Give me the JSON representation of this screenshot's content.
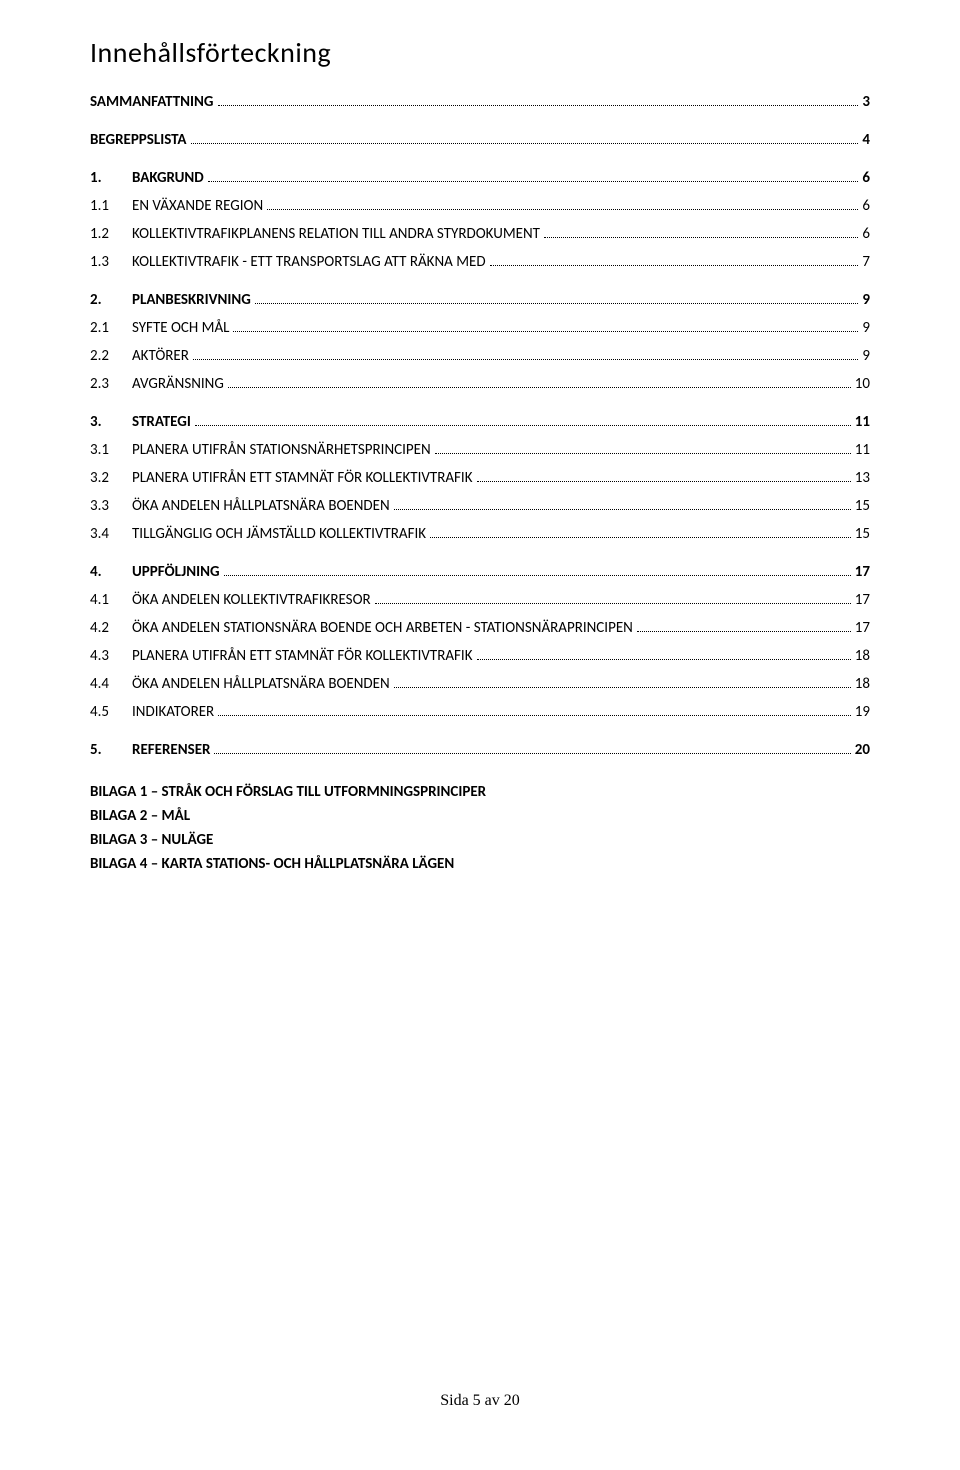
{
  "title": "Innehållsförteckning",
  "entries": [
    {
      "number": "",
      "label": "SAMMANFATTNING",
      "page": "3",
      "bold": true,
      "first": true
    },
    {
      "number": "",
      "label": "BEGREPPSLISTA",
      "page": "4",
      "bold": true
    },
    {
      "number": "1.",
      "label": "BAKGRUND",
      "page": "6",
      "bold": true
    },
    {
      "number": "1.1",
      "label": "EN VÄXANDE REGION",
      "page": "6",
      "bold": false
    },
    {
      "number": "1.2",
      "label": "KOLLEKTIVTRAFIKPLANENS RELATION TILL ANDRA STYRDOKUMENT",
      "page": "6",
      "bold": false
    },
    {
      "number": "1.3",
      "label": "KOLLEKTIVTRAFIK - ETT TRANSPORTSLAG ATT RÄKNA MED",
      "page": "7",
      "bold": false
    },
    {
      "number": "2.",
      "label": "PLANBESKRIVNING",
      "page": "9",
      "bold": true
    },
    {
      "number": "2.1",
      "label": "SYFTE OCH MÅL",
      "page": "9",
      "bold": false
    },
    {
      "number": "2.2",
      "label": "AKTÖRER",
      "page": "9",
      "bold": false
    },
    {
      "number": "2.3",
      "label": "AVGRÄNSNING",
      "page": "10",
      "bold": false
    },
    {
      "number": "3.",
      "label": "STRATEGI",
      "page": "11",
      "bold": true
    },
    {
      "number": "3.1",
      "label": "PLANERA UTIFRÅN STATIONSNÄRHETSPRINCIPEN",
      "page": "11",
      "bold": false
    },
    {
      "number": "3.2",
      "label": "PLANERA UTIFRÅN ETT STAMNÄT FÖR KOLLEKTIVTRAFIK",
      "page": "13",
      "bold": false
    },
    {
      "number": "3.3",
      "label": "ÖKA ANDELEN HÅLLPLATSNÄRA BOENDEN",
      "page": "15",
      "bold": false
    },
    {
      "number": "3.4",
      "label": "TILLGÄNGLIG OCH JÄMSTÄLLD KOLLEKTIVTRAFIK",
      "page": "15",
      "bold": false
    },
    {
      "number": "4.",
      "label": "UPPFÖLJNING",
      "page": "17",
      "bold": true
    },
    {
      "number": "4.1",
      "label": "ÖKA ANDELEN KOLLEKTIVTRAFIKRESOR",
      "page": "17",
      "bold": false
    },
    {
      "number": "4.2",
      "label": "ÖKA ANDELEN STATIONSNÄRA BOENDE OCH ARBETEN - STATIONSNÄRAPRINCIPEN",
      "page": "17",
      "bold": false
    },
    {
      "number": "4.3",
      "label": "PLANERA UTIFRÅN ETT STAMNÄT FÖR KOLLEKTIVTRAFIK",
      "page": "18",
      "bold": false
    },
    {
      "number": "4.4",
      "label": "ÖKA ANDELEN HÅLLPLATSNÄRA BOENDEN",
      "page": "18",
      "bold": false
    },
    {
      "number": "4.5",
      "label": "INDIKATORER",
      "page": "19",
      "bold": false
    },
    {
      "number": "5.",
      "label": "REFERENSER",
      "page": "20",
      "bold": true
    }
  ],
  "appendices": [
    "BILAGA 1 – STRÅK OCH FÖRSLAG TILL UTFORMNINGSPRINCIPER",
    "BILAGA 2 – MÅL",
    "BILAGA 3 – NULÄGE",
    "BILAGA 4 – KARTA STATIONS- OCH HÅLLPLATSNÄRA LÄGEN"
  ],
  "footer": "Sida 5 av 20"
}
